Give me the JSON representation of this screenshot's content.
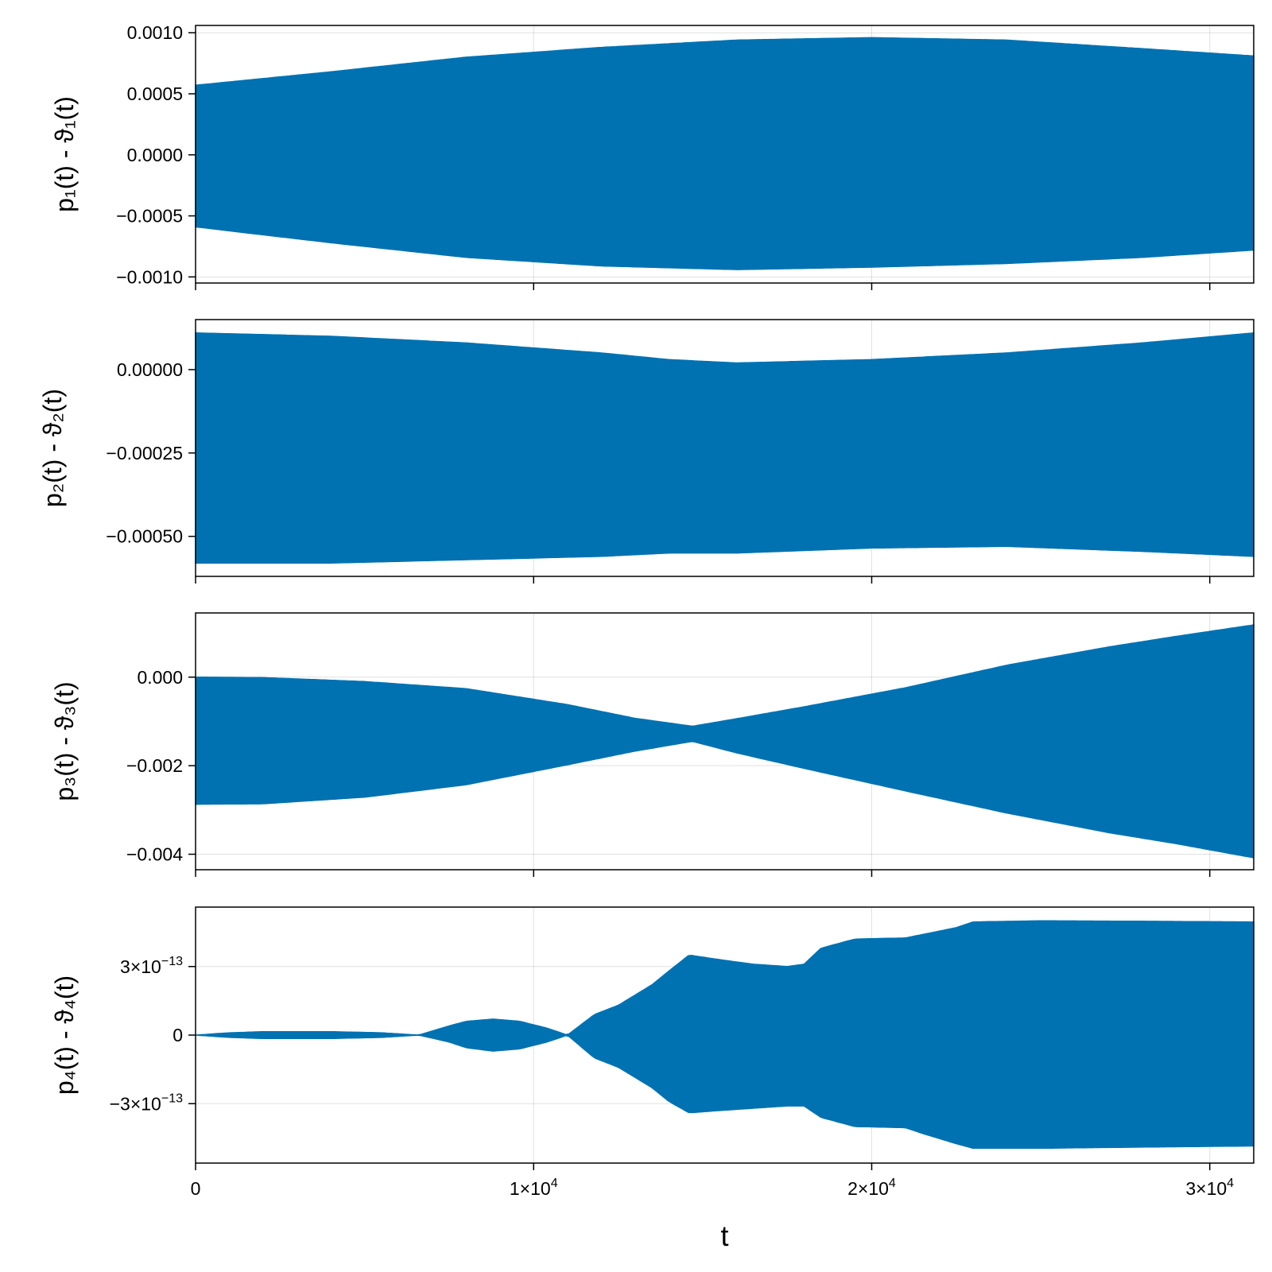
{
  "chart_data": [
    {
      "type": "area",
      "ylabel": "p₁(t) - ϑ₁(t)",
      "xlim": [
        0,
        31300
      ],
      "ylim": [
        -0.00105,
        0.00106
      ],
      "grid": true,
      "yticks": [
        -0.001,
        -0.0005,
        0.0,
        0.0005,
        0.001
      ],
      "yticklabels": [
        "−0.0010",
        "−0.0005",
        "0.0000",
        "0.0005",
        "0.0010"
      ],
      "color": "#0072b2",
      "envelope": {
        "t": [
          0,
          4000,
          8000,
          12000,
          16000,
          20000,
          24000,
          28000,
          31300
        ],
        "upper": [
          0.00057,
          0.00068,
          0.0008,
          0.00088,
          0.00094,
          0.00096,
          0.00094,
          0.00087,
          0.00081
        ],
        "lower": [
          -0.00059,
          -0.00072,
          -0.00084,
          -0.00091,
          -0.00094,
          -0.00092,
          -0.00089,
          -0.00084,
          -0.00078
        ]
      }
    },
    {
      "type": "area",
      "ylabel": "p₂(t) - ϑ₂(t)",
      "xlim": [
        0,
        31300
      ],
      "ylim": [
        -0.00062,
        0.00015
      ],
      "grid": true,
      "yticks": [
        -0.0005,
        -0.00025,
        0.0
      ],
      "yticklabels": [
        "−0.00050",
        "−0.00025",
        "0.00000"
      ],
      "color": "#0072b2",
      "envelope": {
        "t": [
          0,
          4000,
          8000,
          12000,
          14000,
          16000,
          20000,
          24000,
          28000,
          31300
        ],
        "upper": [
          0.00011,
          0.0001,
          8e-05,
          5e-05,
          3e-05,
          2e-05,
          3e-05,
          5e-05,
          8e-05,
          0.00011
        ],
        "lower": [
          -0.00058,
          -0.00058,
          -0.00057,
          -0.00056,
          -0.00055,
          -0.00055,
          -0.000535,
          -0.00053,
          -0.000545,
          -0.00056
        ]
      }
    },
    {
      "type": "area",
      "ylabel": "p₃(t) - ϑ₃(t)",
      "xlim": [
        0,
        31300
      ],
      "ylim": [
        -0.00435,
        0.00145
      ],
      "grid": true,
      "yticks": [
        -0.004,
        -0.002,
        0.0
      ],
      "yticklabels": [
        "−0.004",
        "−0.002",
        "0.000"
      ],
      "color": "#0072b2",
      "envelope": {
        "t": [
          0,
          2000,
          5000,
          8000,
          11000,
          13000,
          14700,
          16000,
          18000,
          21000,
          24000,
          27000,
          29000,
          31300
        ],
        "upper": [
          0.0,
          -1e-05,
          -0.0001,
          -0.00026,
          -0.00062,
          -0.00093,
          -0.00111,
          -0.00094,
          -0.00067,
          -0.00024,
          0.00027,
          0.00068,
          0.00092,
          0.00118
        ],
        "lower": [
          -0.00287,
          -0.00286,
          -0.00271,
          -0.00243,
          -0.00198,
          -0.00167,
          -0.00145,
          -0.00171,
          -0.00206,
          -0.00257,
          -0.00307,
          -0.00351,
          -0.00376,
          -0.00408
        ]
      }
    },
    {
      "type": "area",
      "ylabel": "p₄(t) - ϑ₄(t)",
      "xlabel": "t",
      "xlim": [
        0,
        31300
      ],
      "ylim": [
        -5.6e-13,
        5.6e-13
      ],
      "grid": true,
      "yticks": [
        -3e-13,
        0,
        3e-13
      ],
      "yticklabels": [
        {
          "base": "−3×10",
          "exp": "−13"
        },
        {
          "base": "0",
          "exp": ""
        },
        {
          "base": "3×10",
          "exp": "−13"
        }
      ],
      "xticks": [
        0,
        10000,
        20000,
        30000
      ],
      "xticklabels": [
        {
          "base": "0",
          "exp": ""
        },
        {
          "base": "1×10",
          "exp": "4"
        },
        {
          "base": "2×10",
          "exp": "4"
        },
        {
          "base": "3×10",
          "exp": "4"
        }
      ],
      "color": "#0072b2",
      "envelope": {
        "t": [
          0,
          1000,
          2000,
          4000,
          5500,
          6600,
          7500,
          8000,
          8800,
          9600,
          10400,
          11000,
          11800,
          12500,
          13500,
          14000,
          14600,
          15500,
          16500,
          17500,
          18000,
          18500,
          19500,
          21000,
          21500,
          22500,
          23000,
          25000,
          28000,
          31300
        ],
        "upper": [
          0,
          1e-14,
          1.5e-14,
          1.5e-14,
          1e-14,
          0,
          4e-14,
          6e-14,
          7e-14,
          6e-14,
          3e-14,
          0,
          9e-14,
          1.3e-13,
          2.2e-13,
          2.8e-13,
          3.5e-13,
          3.3e-13,
          3.1e-13,
          3e-13,
          3.1e-13,
          3.8e-13,
          4.2e-13,
          4.25e-13,
          4.4e-13,
          4.7e-13,
          4.95e-13,
          5e-13,
          4.98e-13,
          4.95e-13
        ],
        "lower": [
          0,
          -1e-14,
          -1.5e-14,
          -1.5e-14,
          -1e-14,
          0,
          -3e-14,
          -5.5e-14,
          -7e-14,
          -6e-14,
          -3e-14,
          0,
          -1e-13,
          -1.4e-13,
          -2.3e-13,
          -2.9e-13,
          -3.4e-13,
          -3.3e-13,
          -3.2e-13,
          -3.1e-13,
          -3.1e-13,
          -3.6e-13,
          -4e-13,
          -4.05e-13,
          -4.3e-13,
          -4.75e-13,
          -4.95e-13,
          -4.95e-13,
          -4.9e-13,
          -4.85e-13
        ]
      }
    }
  ]
}
